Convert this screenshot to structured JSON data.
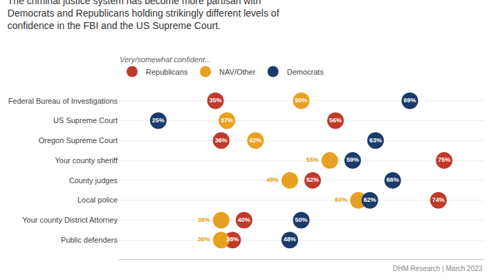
{
  "chart_data": {
    "type": "scatter",
    "marker": "circle",
    "title": "The criminal justice system has become more partisan with\nDemocrats and Republicans holding strikingly different levels of\nconfidence in the FBI and the US Supreme Court.",
    "subtitle": "Very/somewhat confident...",
    "annotations": [
      "DHM Research | March 2023"
    ],
    "categories": [
      "Federal Bureau of Investigations",
      "US Supreme Court",
      "Oregon Supreme Court",
      "Your county sheriff",
      "County judges",
      "Local police",
      "Your county District Attorney",
      "Public defenders"
    ],
    "series": [
      {
        "name": "Republicans",
        "color": "#c0392b",
        "values": [
          35,
          56,
          36,
          75,
          52,
          74,
          40,
          38
        ],
        "value_labels": [
          "35%",
          "56%",
          "36%",
          "75%",
          "52%",
          "74%",
          "40%",
          "38%"
        ]
      },
      {
        "name": "NAV/Other",
        "color": "#e8a020",
        "values": [
          50,
          37,
          42,
          55,
          48,
          60,
          36,
          36
        ],
        "value_labels": [
          "50%",
          "37%",
          "42%",
          "55%",
          "48%",
          "60%",
          "36%",
          "36%"
        ]
      },
      {
        "name": "Democrats",
        "color": "#1a3a6b",
        "values": [
          69,
          25,
          63,
          59,
          66,
          62,
          50,
          48
        ],
        "value_labels": [
          "69%",
          "25%",
          "63%",
          "59%",
          "66%",
          "62%",
          "50%",
          "48%"
        ]
      }
    ],
    "xlim": [
      18,
      82
    ],
    "tick_labels": "y",
    "data_labels": true,
    "legend": "top"
  }
}
